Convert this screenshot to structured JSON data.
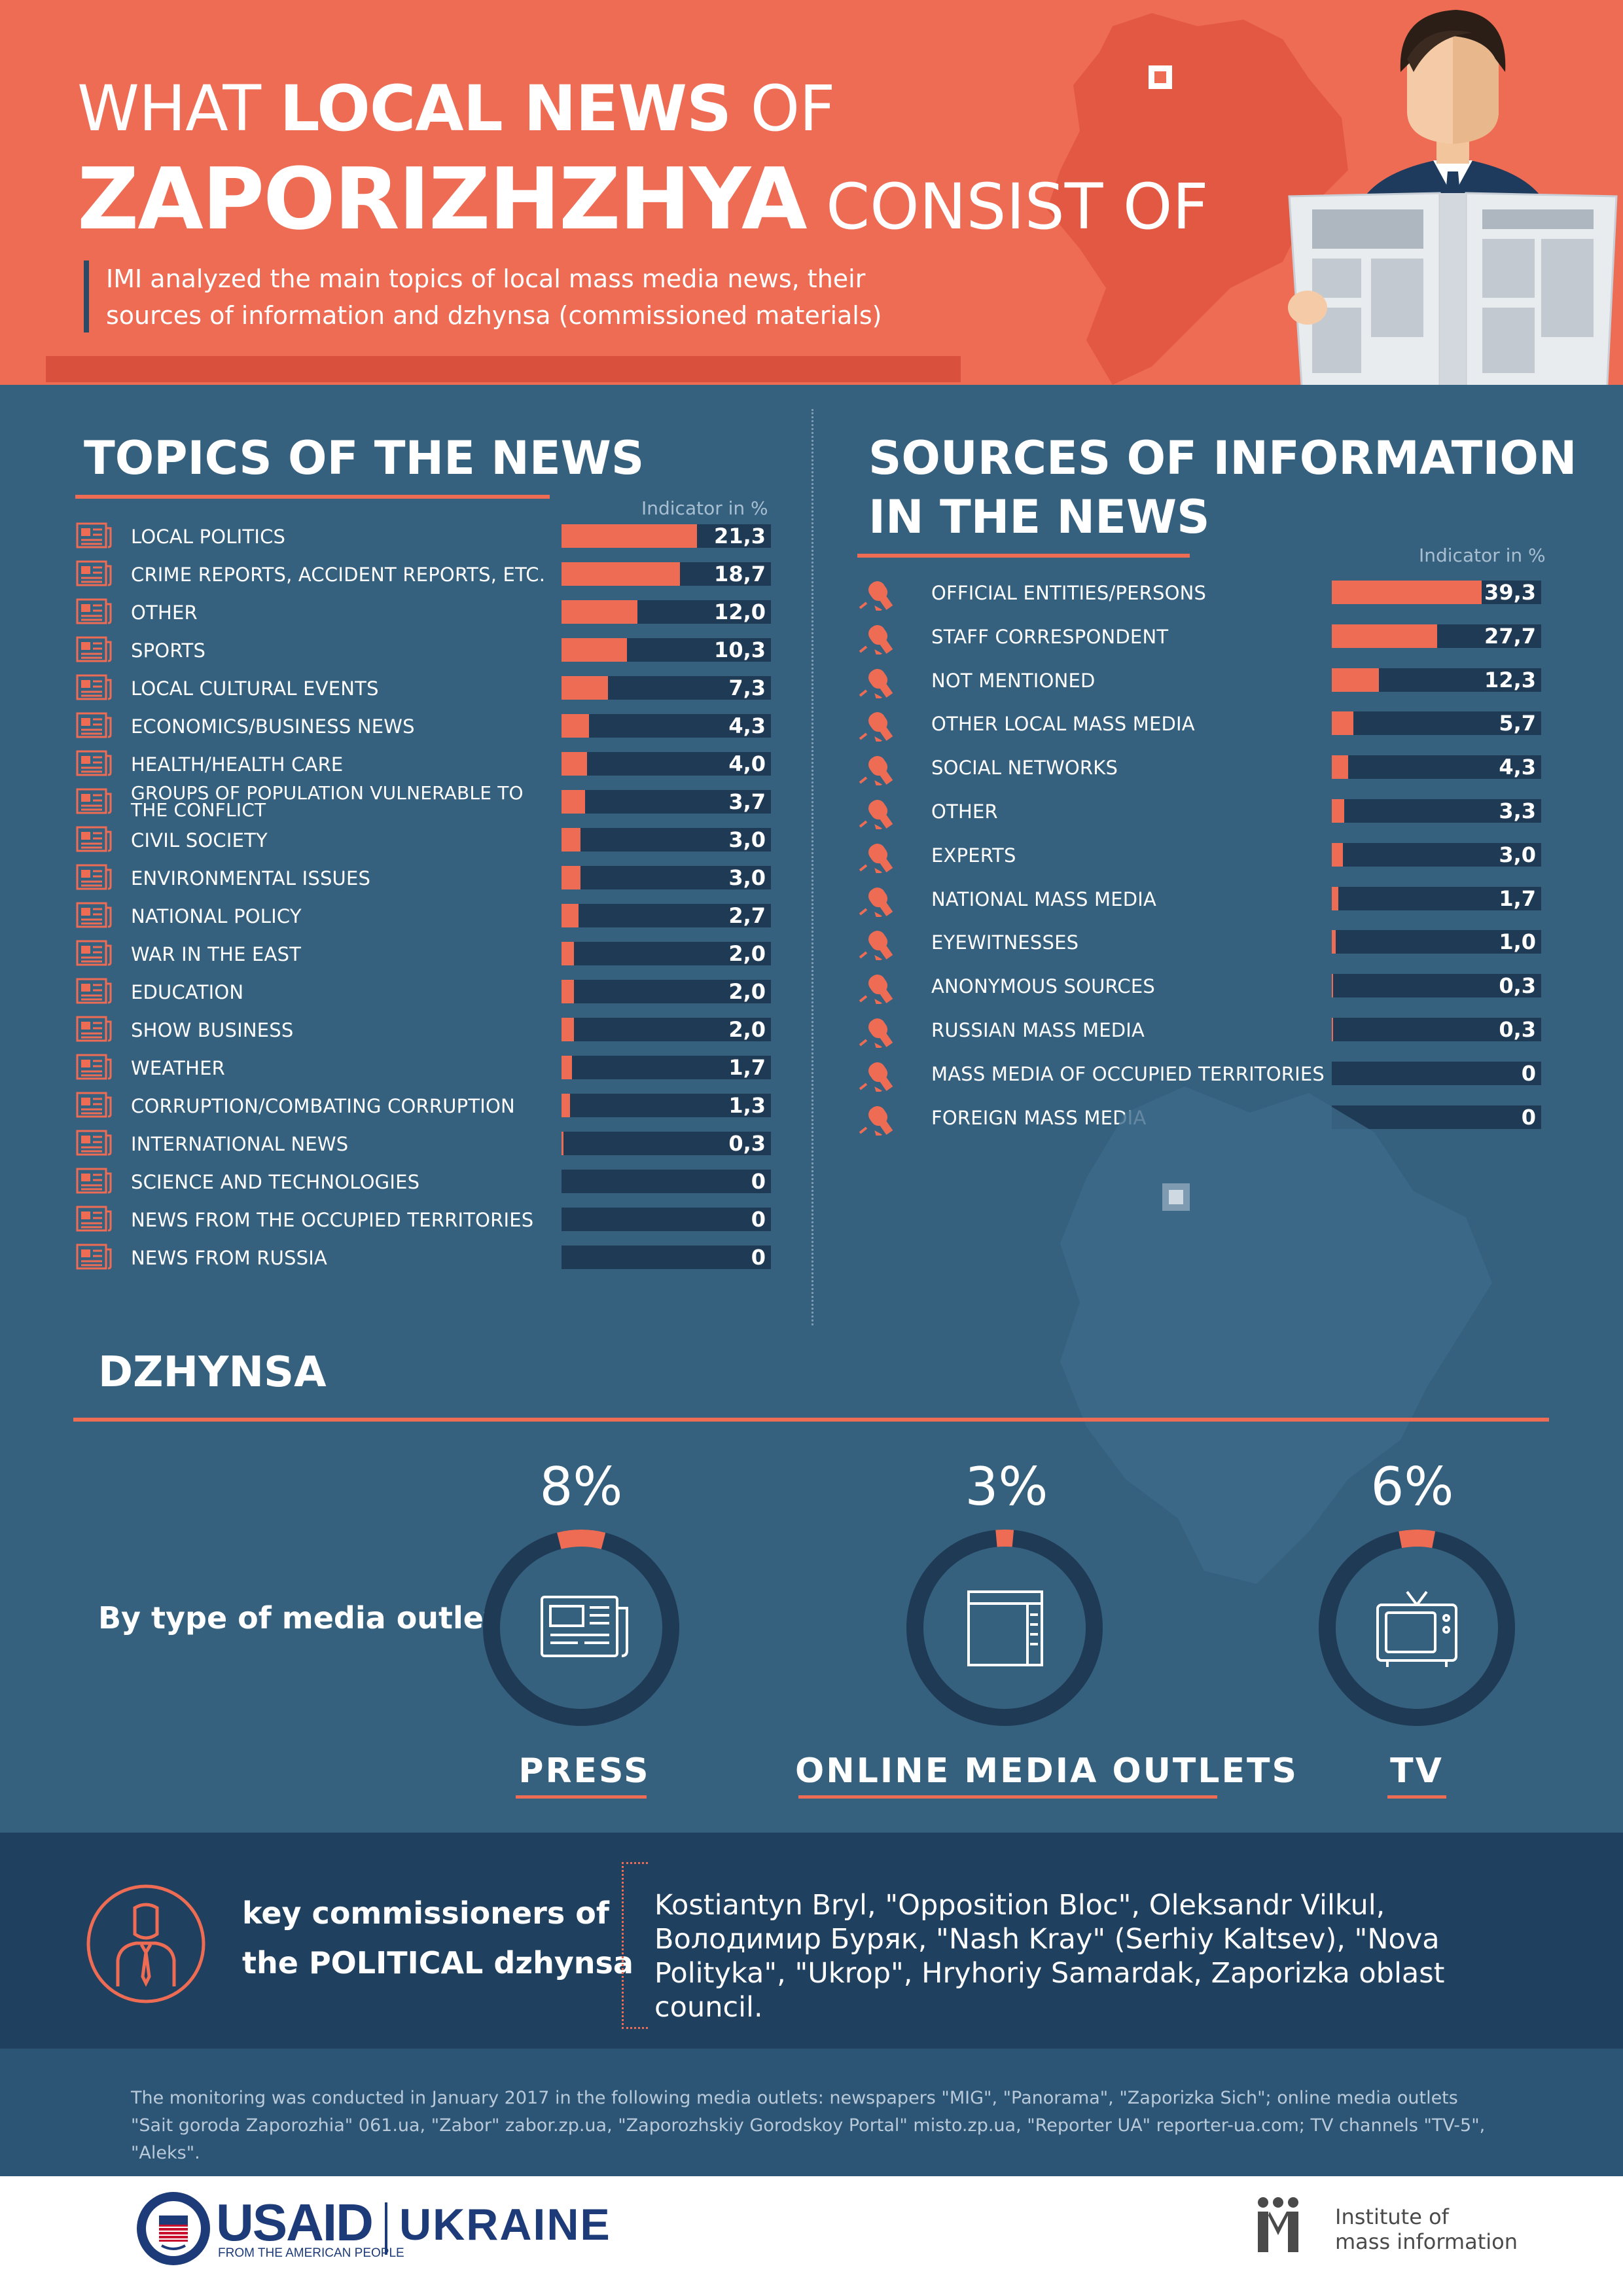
{
  "header": {
    "title_thin_1": "WHAT ",
    "title_bold_1": "LOCAL NEWS",
    "title_thin_2": " OF",
    "title_bold_2": "ZAPORIZHZHYA",
    "title_thin_3": " CONSIST OF",
    "subtitle": "IMI analyzed the main topics of local mass media news, their sources of information and dzhynsa (commissioned materials)",
    "accent_color": "#ef6c54",
    "dark_color": "#35617f"
  },
  "topics": {
    "title": "TOPICS OF THE NEWS",
    "indicator_label": "Indicator in %"
  },
  "sources": {
    "title_line1": "SOURCES OF INFORMATION",
    "title_line2": "IN THE NEWS",
    "indicator_label": "Indicator in %"
  },
  "chart_data": [
    {
      "type": "bar",
      "title": "TOPICS OF THE NEWS",
      "ylabel": "Indicator in %",
      "xlim": [
        0,
        100
      ],
      "categories": [
        "LOCAL POLITICS",
        "CRIME REPORTS, ACCIDENT REPORTS, ETC.",
        "OTHER",
        "SPORTS",
        "LOCAL CULTURAL EVENTS",
        "ECONOMICS/BUSINESS NEWS",
        "HEALTH/HEALTH CARE",
        "GROUPS OF POPULATION VULNERABLE TO THE CONFLICT",
        "CIVIL SOCIETY",
        "ENVIRONMENTAL ISSUES",
        "NATIONAL POLICY",
        "WAR IN THE EAST",
        "EDUCATION",
        "SHOW BUSINESS",
        "WEATHER",
        "CORRUPTION/COMBATING CORRUPTION",
        "INTERNATIONAL NEWS",
        "SCIENCE AND TECHNOLOGIES",
        "NEWS FROM THE OCCUPIED TERRITORIES",
        "NEWS FROM RUSSIA"
      ],
      "values": [
        21.3,
        18.7,
        12.0,
        10.3,
        7.3,
        4.3,
        4.0,
        3.7,
        3.0,
        3.0,
        2.7,
        2.0,
        2.0,
        2.0,
        1.7,
        1.3,
        0.3,
        0,
        0,
        0
      ],
      "labels": [
        "21,3",
        "18,7",
        "12,0",
        "10,3",
        "7,3",
        "4,3",
        "4,0",
        "3,7",
        "3,0",
        "3,0",
        "2,7",
        "2,0",
        "2,0",
        "2,0",
        "1,7",
        "1,3",
        "0,3",
        "0",
        "0",
        "0"
      ]
    },
    {
      "type": "bar",
      "title": "SOURCES OF INFORMATION IN THE NEWS",
      "ylabel": "Indicator in %",
      "xlim": [
        0,
        100
      ],
      "categories": [
        "OFFICIAL ENTITIES/PERSONS",
        "STAFF CORRESPONDENT",
        "NOT MENTIONED",
        "OTHER LOCAL MASS MEDIA",
        "SOCIAL NETWORKS",
        "OTHER",
        "EXPERTS",
        "NATIONAL MASS MEDIA",
        "EYEWITNESSES",
        "ANONYMOUS SOURCES",
        "RUSSIAN MASS MEDIA",
        "MASS MEDIA OF OCCUPIED TERRITORIES",
        "FOREIGN MASS MEDIA"
      ],
      "values": [
        39.3,
        27.7,
        12.3,
        5.7,
        4.3,
        3.3,
        3.0,
        1.7,
        1.0,
        0.3,
        0.3,
        0,
        0
      ],
      "labels": [
        "39,3",
        "27,7",
        "12,3",
        "5,7",
        "4,3",
        "3,3",
        "3,0",
        "1,7",
        "1,0",
        "0,3",
        "0,3",
        "0",
        "0"
      ]
    },
    {
      "type": "pie",
      "title": "DZHYNSA",
      "subtitle": "By type of media outlet",
      "categories": [
        "PRESS",
        "ONLINE MEDIA OUTLETS",
        "TV"
      ],
      "values": [
        8,
        3,
        6
      ],
      "labels": [
        "8%",
        "3%",
        "6%"
      ]
    }
  ],
  "dzhynsa": {
    "title": "DZHYNSA",
    "by_type": "By type of media outlet"
  },
  "commissioners": {
    "label_line1": "key commissioners of",
    "label_line2": "the POLITICAL dzhynsa",
    "text": "Kostiantyn Bryl, \"Opposition Bloc\", Oleksandr Vilkul, Володимир Буряк, \"Nash Kray\" (Serhiy Kaltsev), \"Nova Polityka\", \"Ukrop\", Hryhoriy Samardak, Zaporizka oblast council."
  },
  "note": "The monitoring was conducted in January 2017 in the following media outlets: newspapers \"MIG\", \"Panorama\", \"Zaporizka Sich\"; online media outlets \"Sait goroda Zaporozhia\" 061.ua, \"Zabor\" zabor.zp.ua, \"Zaporozhskiy Gorodskoy Portal\" misto.zp.ua, \"Reporter UA\" reporter-ua.com; TV channels \"TV-5\", \"Aleks\".",
  "logos": {
    "usaid": "USAID",
    "usaid_sub": "FROM THE AMERICAN PEOPLE",
    "ukraine": "UKRAINE",
    "imi_line1": "Institute of",
    "imi_line2": "mass information"
  }
}
